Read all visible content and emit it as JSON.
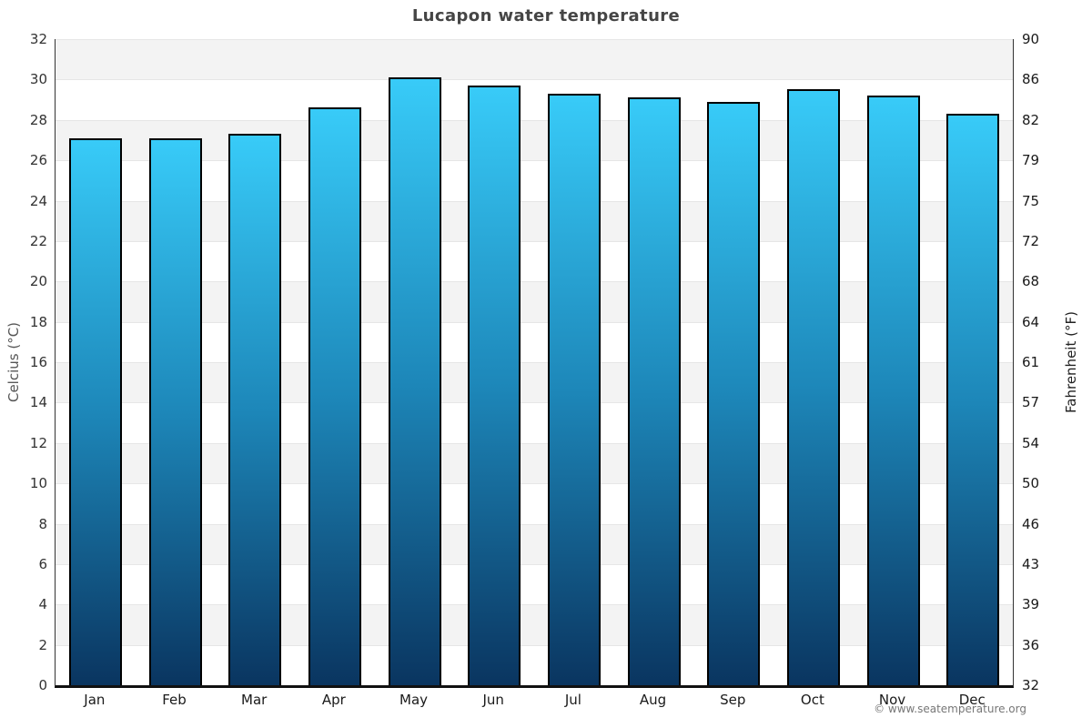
{
  "title": "Lucapon water temperature",
  "watermark": "© www.seatemperature.org",
  "y_axis_left": {
    "label": "Celcius (°C)",
    "ticks_top_to_bottom": [
      "32",
      "30",
      "28",
      "26",
      "24",
      "22",
      "20",
      "18",
      "16",
      "14",
      "12",
      "10",
      "8",
      "6",
      "4",
      "2",
      "0"
    ]
  },
  "y_axis_right": {
    "label": "Fahrenheit (°F)",
    "ticks_top_to_bottom": [
      "90",
      "86",
      "82",
      "79",
      "75",
      "72",
      "68",
      "64",
      "61",
      "57",
      "54",
      "50",
      "46",
      "43",
      "39",
      "36",
      "32"
    ]
  },
  "chart_data": {
    "type": "bar",
    "title": "Lucapon water temperature",
    "categories": [
      "Jan",
      "Feb",
      "Mar",
      "Apr",
      "May",
      "Jun",
      "Jul",
      "Aug",
      "Sep",
      "Oct",
      "Nov",
      "Dec"
    ],
    "values": [
      27.1,
      27.1,
      27.3,
      28.6,
      30.1,
      29.7,
      29.3,
      29.1,
      28.9,
      29.5,
      29.2,
      28.3
    ],
    "unit": "°C",
    "ylabel_left": "Celcius (°C)",
    "ylabel_right": "Fahrenheit (°F)",
    "ylim": [
      0,
      32
    ],
    "y_step": 2,
    "grid": "alternating horizontal bands every 2°C, gray band at top (32-30)",
    "legend": "none"
  },
  "colors": {
    "bar_top": "#38cbf8",
    "bar_mid": "#1d87b9",
    "bar_bottom": "#0a3560",
    "bar_border": "#000000",
    "band_gray": "#f3f3f3",
    "band_white": "#ffffff",
    "grid_line": "#e6e6e6",
    "axis_line": "#111111",
    "plot_border": "#333333",
    "title_color": "#454545",
    "tick_color": "#333333",
    "tick_color_right": "#1a1a1a",
    "month_color": "#1a1a1a",
    "left_label_color": "#555555",
    "right_label_color": "#222222",
    "watermark_color": "#777777"
  }
}
